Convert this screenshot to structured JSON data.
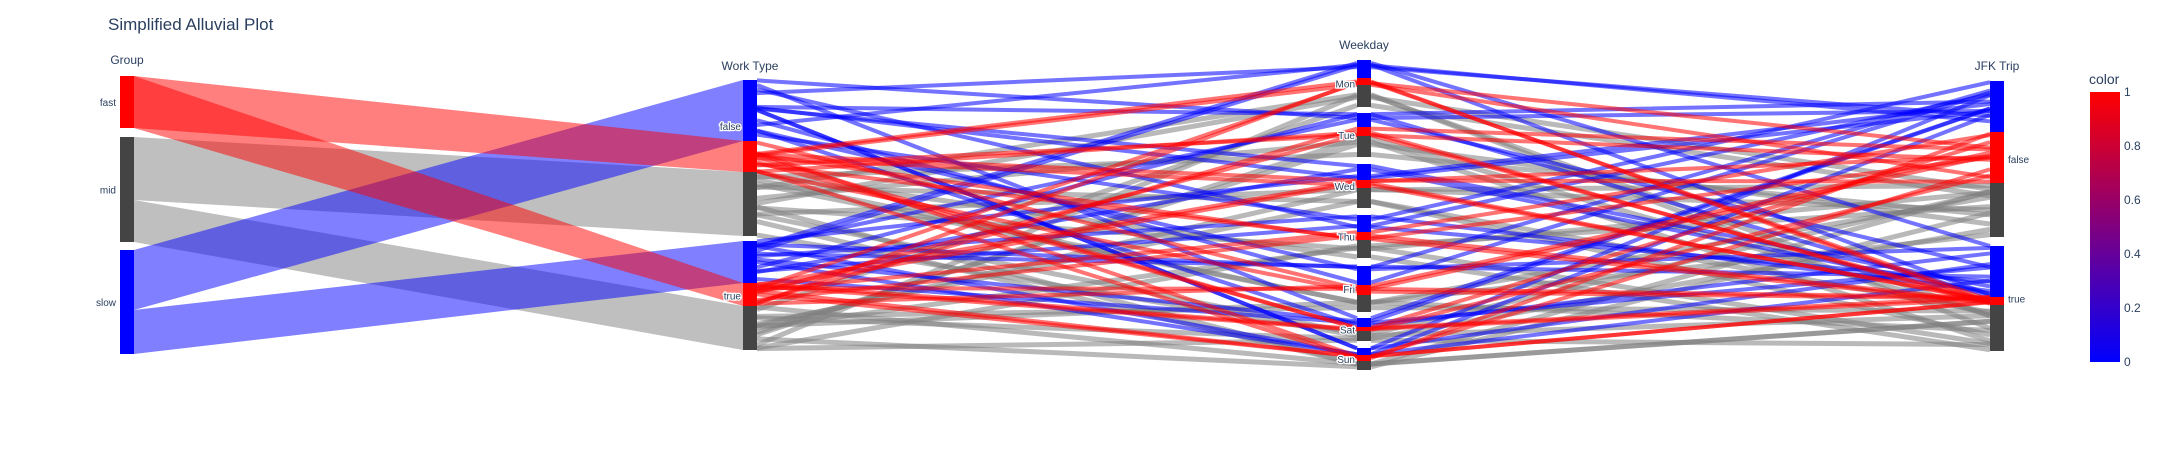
{
  "chart_data": {
    "type": "parallel_categories",
    "title": "Simplified Alluvial Plot",
    "dimensions": [
      {
        "label": "Group",
        "categories": [
          "fast",
          "mid",
          "slow"
        ]
      },
      {
        "label": "Work Type",
        "categories": [
          "false",
          "true"
        ]
      },
      {
        "label": "Weekday",
        "categories": [
          "Mon",
          "Tue",
          "Wed",
          "Thu",
          "Fri",
          "Sat",
          "Sun"
        ]
      },
      {
        "label": "JFK Trip",
        "categories": [
          "false",
          "true"
        ]
      }
    ],
    "color_by_group": {
      "fast": 1,
      "mid": 0.5,
      "slow": 0
    },
    "colorbar": {
      "title": "color",
      "ticks": [
        "1",
        "0.8",
        "0.6",
        "0.4",
        "0.2",
        "0"
      ],
      "range": [
        0,
        1
      ],
      "colorscale": [
        "#0000ff",
        "#ff0000"
      ]
    },
    "colors": {
      "slow": "#0000ff",
      "fast": "#ff0000",
      "mid": "#808080",
      "mid_bar": "#444444"
    }
  }
}
